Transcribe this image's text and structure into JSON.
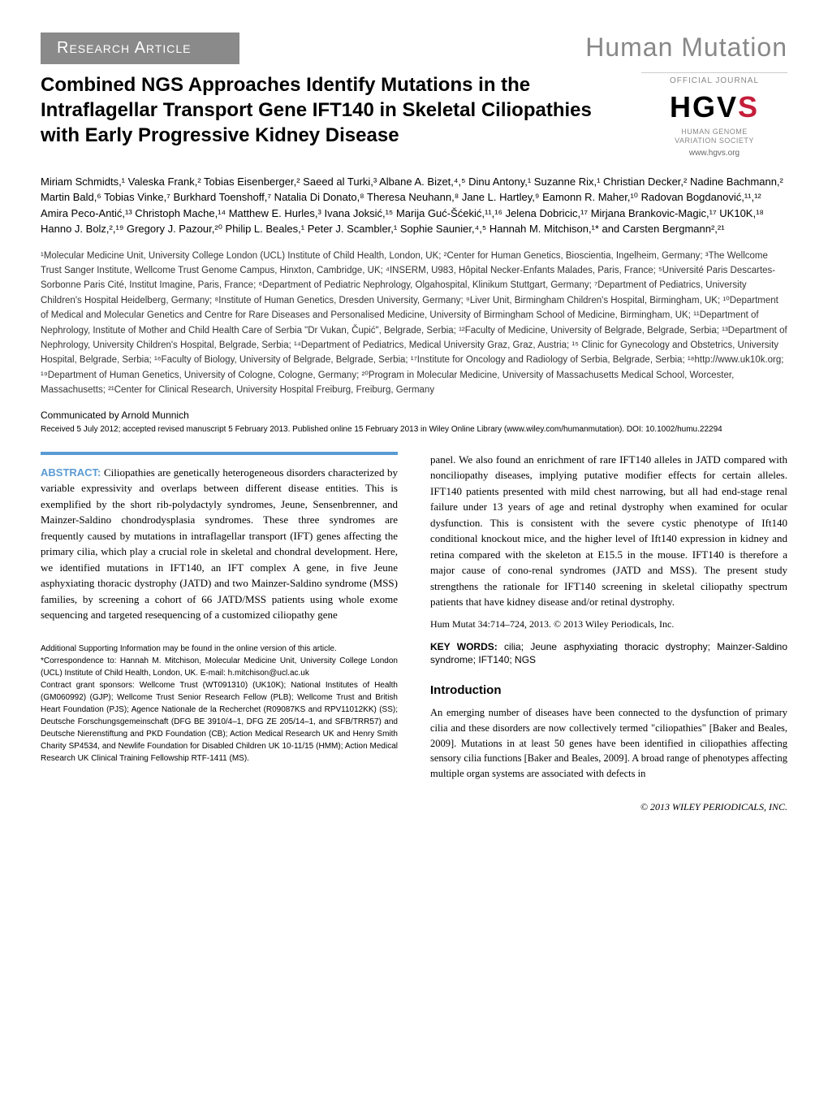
{
  "banner": {
    "section_label": "Research Article",
    "journal_name": "Human Mutation"
  },
  "logo": {
    "official": "OFFICIAL JOURNAL",
    "logo_text_1": "HGV",
    "logo_text_2": "S",
    "sub1": "HUMAN GENOME",
    "sub2": "VARIATION SOCIETY",
    "url": "www.hgvs.org"
  },
  "title": "Combined NGS Approaches Identify Mutations in the Intraflagellar Transport Gene IFT140 in Skeletal Ciliopathies with Early Progressive Kidney Disease",
  "authors": "Miriam Schmidts,¹ Valeska Frank,² Tobias Eisenberger,² Saeed al Turki,³ Albane A. Bizet,⁴,⁵ Dinu Antony,¹ Suzanne Rix,¹ Christian Decker,² Nadine Bachmann,² Martin Bald,⁶ Tobias Vinke,⁷ Burkhard Toenshoff,⁷ Natalia Di Donato,⁸ Theresa Neuhann,⁸ Jane L. Hartley,⁹ Eamonn R. Maher,¹⁰ Radovan Bogdanović,¹¹,¹² Amira Peco-Antić,¹³ Christoph Mache,¹⁴ Matthew E. Hurles,³ Ivana Joksić,¹⁵ Marija Guć-Šćekić,¹¹,¹⁶ Jelena Dobricic,¹⁷ Mirjana Brankovic-Magic,¹⁷ UK10K,¹⁸ Hanno J. Bolz,²,¹⁹ Gregory J. Pazour,²⁰ Philip L. Beales,¹ Peter J. Scambler,¹ Sophie Saunier,⁴,⁵ Hannah M. Mitchison,¹* and Carsten Bergmann²,²¹",
  "affiliations": "¹Molecular Medicine Unit, University College London (UCL) Institute of Child Health, London, UK; ²Center for Human Genetics, Bioscientia, Ingelheim, Germany; ³The Wellcome Trust Sanger Institute, Wellcome Trust Genome Campus, Hinxton, Cambridge, UK; ⁴INSERM, U983, Hôpital Necker-Enfants Malades, Paris, France; ⁵Université Paris Descartes-Sorbonne Paris Cité, Institut Imagine, Paris, France; ⁶Department of Pediatric Nephrology, Olgahospital, Klinikum Stuttgart, Germany; ⁷Department of Pediatrics, University Children's Hospital Heidelberg, Germany; ⁸Institute of Human Genetics, Dresden University, Germany; ⁹Liver Unit, Birmingham Children's Hospital, Birmingham, UK; ¹⁰Department of Medical and Molecular Genetics and Centre for Rare Diseases and Personalised Medicine, University of Birmingham School of Medicine, Birmingham, UK; ¹¹Department of Nephrology, Institute of Mother and Child Health Care of Serbia \"Dr Vukan, Čupić\", Belgrade, Serbia; ¹²Faculty of Medicine, University of Belgrade, Belgrade, Serbia; ¹³Department of Nephrology, University Children's Hospital, Belgrade, Serbia; ¹⁴Department of Pediatrics, Medical University Graz, Graz, Austria; ¹⁵ Clinic for Gynecology and Obstetrics, University Hospital, Belgrade, Serbia; ¹⁶Faculty of Biology, University of Belgrade, Belgrade, Serbia; ¹⁷Institute for Oncology and Radiology of Serbia, Belgrade, Serbia; ¹⁸http://www.uk10k.org; ¹⁹Department of Human Genetics, University of Cologne, Cologne, Germany; ²⁰Program in Molecular Medicine, University of Massachusetts Medical School, Worcester, Massachusetts; ²¹Center for Clinical Research, University Hospital Freiburg, Freiburg, Germany",
  "communicated": "Communicated by Arnold Munnich",
  "received": "Received 5 July 2012; accepted revised manuscript 5 February 2013.\nPublished online 15 February 2013 in Wiley Online Library (www.wiley.com/humanmutation). DOI: 10.1002/humu.22294",
  "abstract": {
    "label": "ABSTRACT:",
    "col1": "Ciliopathies are genetically heterogeneous disorders characterized by variable expressivity and overlaps between different disease entities. This is exemplified by the short rib-polydactyly syndromes, Jeune, Sensenbrenner, and Mainzer-Saldino chondrodysplasia syndromes. These three syndromes are frequently caused by mutations in intraflagellar transport (IFT) genes affecting the primary cilia, which play a crucial role in skeletal and chondral development. Here, we identified mutations in IFT140, an IFT complex A gene, in five Jeune asphyxiating thoracic dystrophy (JATD) and two Mainzer-Saldino syndrome (MSS) families, by screening a cohort of 66 JATD/MSS patients using whole exome sequencing and targeted resequencing of a customized ciliopathy gene",
    "col2": "panel. We also found an enrichment of rare IFT140 alleles in JATD compared with nonciliopathy diseases, implying putative modifier effects for certain alleles. IFT140 patients presented with mild chest narrowing, but all had end-stage renal failure under 13 years of age and retinal dystrophy when examined for ocular dysfunction. This is consistent with the severe cystic phenotype of Ift140 conditional knockout mice, and the higher level of Ift140 expression in kidney and retina compared with the skeleton at E15.5 in the mouse. IFT140 is therefore a major cause of cono-renal syndromes (JATD and MSS). The present study strengthens the rationale for IFT140 screening in skeletal ciliopathy spectrum patients that have kidney disease and/or retinal dystrophy.",
    "citation": "Hum Mutat 34:714–724, 2013. © 2013 Wiley Periodicals, Inc.",
    "keywords_label": "KEY WORDS:",
    "keywords": "cilia; Jeune asphyxiating thoracic dystrophy; Mainzer-Saldino syndrome; IFT140; NGS"
  },
  "footnotes": {
    "supporting": "Additional Supporting Information may be found in the online version of this article.",
    "correspondence": "*Correspondence to: Hannah M. Mitchison, Molecular Medicine Unit, University College London (UCL) Institute of Child Health, London, UK. E-mail: h.mitchison@ucl.ac.uk",
    "grants": "Contract grant sponsors: Wellcome Trust (WT091310) (UK10K); National Institutes of Health (GM060992) (GJP); Wellcome Trust Senior Research Fellow (PLB); Wellcome Trust and British Heart Foundation (PJS); Agence Nationale de la Recherchet (R09087KS and RPV11012KK) (SS); Deutsche Forschungsgemeinschaft (DFG BE 3910/4–1, DFG ZE 205/14–1, and SFB/TRR57) and Deutsche Nierenstiftung and PKD Foundation (CB); Action Medical Research UK and Henry Smith Charity SP4534, and Newlife Foundation for Disabled Children UK 10-11/15 (HMM); Action Medical Research UK Clinical Training Fellowship RTF-1411 (MS)."
  },
  "intro": {
    "heading": "Introduction",
    "text": "An emerging number of diseases have been connected to the dysfunction of primary cilia and these disorders are now collectively termed \"ciliopathies\" [Baker and Beales, 2009]. Mutations in at least 50 genes have been identified in ciliopathies affecting sensory cilia functions [Baker and Beales, 2009]. A broad range of phenotypes affecting multiple organ systems are associated with defects in"
  },
  "copyright": "© 2013 WILEY PERIODICALS, INC.",
  "colors": {
    "banner_bg": "#8a8a8a",
    "accent_blue": "#5a9bd4",
    "logo_red": "#c41e3a",
    "gray_text": "#888888"
  }
}
